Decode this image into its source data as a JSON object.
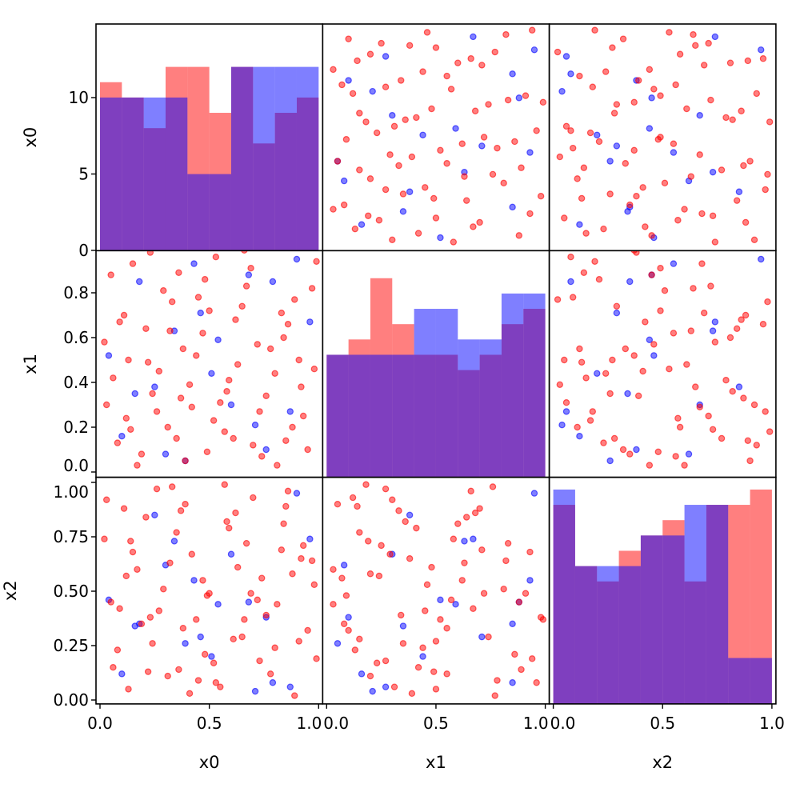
{
  "chart_data": {
    "type": "scatter-matrix",
    "variables": [
      "x0",
      "x1",
      "x2"
    ],
    "colors": {
      "red": "#ff0000",
      "blue": "#0000ff"
    },
    "alpha": 0.5,
    "y_ticks": [
      [
        "0",
        "5",
        "10"
      ],
      [
        "0.0",
        "0.2",
        "0.4",
        "0.6",
        "0.8"
      ],
      [
        "0.00",
        "0.25",
        "0.50",
        "0.75",
        "1.00"
      ]
    ],
    "y_tick_values": [
      [
        0,
        5,
        10
      ],
      [
        0,
        0.2,
        0.4,
        0.6,
        0.8
      ],
      [
        0,
        0.25,
        0.5,
        0.75,
        1.0
      ]
    ],
    "x_ticks": [
      "0.0",
      "0.5",
      "1.0"
    ],
    "x_tick_values": [
      0,
      0.5,
      1.0
    ],
    "histograms": [
      {
        "var": "x0",
        "bins": [
          0,
          0.1,
          0.2,
          0.3,
          0.4,
          0.5,
          0.6,
          0.7,
          0.8,
          0.9,
          1.0
        ],
        "red": [
          11,
          10,
          8,
          12,
          12,
          9,
          12,
          7,
          9,
          10
        ],
        "blue": [
          10,
          10,
          10,
          10,
          5,
          5,
          12,
          12,
          12,
          12
        ],
        "ylim": [
          0,
          14.8
        ]
      },
      {
        "var": "x1",
        "bins": [
          0,
          0.1,
          0.2,
          0.3,
          0.4,
          0.5,
          0.6,
          0.7,
          0.8,
          0.9,
          1.0
        ],
        "red": [
          8,
          9,
          13,
          10,
          8,
          8,
          7,
          8,
          10,
          11
        ],
        "blue": [
          8,
          8,
          8,
          8,
          11,
          11,
          9,
          9,
          12,
          12
        ],
        "ylim": [
          0,
          14.8
        ]
      },
      {
        "var": "x2",
        "bins": [
          0,
          0.1,
          0.2,
          0.3,
          0.4,
          0.5,
          0.6,
          0.7,
          0.8,
          0.9,
          1.0
        ],
        "red": [
          13,
          9,
          8,
          10,
          11,
          12,
          8,
          13,
          13,
          14
        ],
        "blue": [
          14,
          9,
          9,
          9,
          11,
          11,
          13,
          13,
          3,
          3
        ],
        "ylim": [
          0,
          14.8
        ]
      }
    ],
    "points_red": [
      [
        0.05,
        0.88,
        0.45
      ],
      [
        0.12,
        0.24,
        0.57
      ],
      [
        0.33,
        0.76,
        0.98
      ],
      [
        0.44,
        0.52,
        0.37
      ],
      [
        0.61,
        0.15,
        0.28
      ],
      [
        0.78,
        0.55,
        0.12
      ],
      [
        0.92,
        0.38,
        0.65
      ],
      [
        0.21,
        0.64,
        0.84
      ],
      [
        0.55,
        0.31,
        0.06
      ],
      [
        0.67,
        0.83,
        0.72
      ],
      [
        0.08,
        0.13,
        0.23
      ],
      [
        0.27,
        0.45,
        0.41
      ],
      [
        0.39,
        0.05,
        0.9
      ],
      [
        0.5,
        0.72,
        0.49
      ],
      [
        0.73,
        0.27,
        0.18
      ],
      [
        0.86,
        0.66,
        0.96
      ],
      [
        0.95,
        0.1,
        0.32
      ],
      [
        0.15,
        0.93,
        0.68
      ],
      [
        0.31,
        0.2,
        0.11
      ],
      [
        0.47,
        0.62,
        0.55
      ],
      [
        0.59,
        0.41,
        0.79
      ],
      [
        0.81,
        0.03,
        0.44
      ],
      [
        0.02,
        0.58,
        0.74
      ],
      [
        0.24,
        0.35,
        0.26
      ],
      [
        0.36,
        0.89,
        0.14
      ],
      [
        0.63,
        0.48,
        0.61
      ],
      [
        0.7,
        0.12,
        0.93
      ],
      [
        0.89,
        0.77,
        0.02
      ],
      [
        0.98,
        0.46,
        0.53
      ],
      [
        0.11,
        0.7,
        0.88
      ],
      [
        0.19,
        0.08,
        0.35
      ],
      [
        0.42,
        0.29,
        0.67
      ],
      [
        0.53,
        0.96,
        0.08
      ],
      [
        0.76,
        0.34,
        0.39
      ],
      [
        0.84,
        0.6,
        0.81
      ],
      [
        0.06,
        0.42,
        0.15
      ],
      [
        0.29,
        0.81,
        0.51
      ],
      [
        0.57,
        0.18,
        0.99
      ],
      [
        0.65,
        0.74,
        0.29
      ],
      [
        0.93,
        0.25,
        0.71
      ],
      [
        0.13,
        0.5,
        0.05
      ],
      [
        0.35,
        0.15,
        0.77
      ],
      [
        0.48,
        0.86,
        0.21
      ],
      [
        0.72,
        0.57,
        0.46
      ],
      [
        0.88,
        0.2,
        0.58
      ],
      [
        0.03,
        0.3,
        0.92
      ],
      [
        0.23,
        0.98,
        0.38
      ],
      [
        0.41,
        0.39,
        0.03
      ],
      [
        0.62,
        0.68,
        0.86
      ],
      [
        0.8,
        0.44,
        0.24
      ],
      [
        0.97,
        0.82,
        0.64
      ],
      [
        0.17,
        0.03,
        0.6
      ],
      [
        0.38,
        0.55,
        0.33
      ],
      [
        0.52,
        0.23,
        0.17
      ],
      [
        0.69,
        0.91,
        0.49
      ],
      [
        0.85,
        0.14,
        0.89
      ],
      [
        0.09,
        0.67,
        0.42
      ],
      [
        0.26,
        0.27,
        0.97
      ],
      [
        0.45,
        0.78,
        0.09
      ],
      [
        0.74,
        0.07,
        0.56
      ],
      [
        0.91,
        0.5,
        0.27
      ],
      [
        0.32,
        0.63,
        0.63
      ],
      [
        0.58,
        0.36,
        0.82
      ],
      [
        0.99,
        0.94,
        0.19
      ],
      [
        0.14,
        0.19,
        0.73
      ],
      [
        0.66,
        0.99,
        0.37
      ],
      [
        0.49,
        0.09,
        0.48
      ],
      [
        0.83,
        0.71,
        0.69
      ],
      [
        0.22,
        0.49,
        0.13
      ],
      [
        0.37,
        0.33,
        0.87
      ]
    ],
    "points_blue": [
      [
        0.04,
        0.52,
        0.46
      ],
      [
        0.18,
        0.85,
        0.35
      ],
      [
        0.34,
        0.63,
        0.73
      ],
      [
        0.51,
        0.44,
        0.2
      ],
      [
        0.68,
        0.88,
        0.45
      ],
      [
        0.87,
        0.27,
        0.06
      ],
      [
        0.1,
        0.16,
        0.12
      ],
      [
        0.25,
        0.38,
        0.85
      ],
      [
        0.43,
        0.93,
        0.55
      ],
      [
        0.6,
        0.3,
        0.67
      ],
      [
        0.79,
        0.85,
        0.08
      ],
      [
        0.96,
        0.67,
        0.74
      ],
      [
        0.3,
        0.08,
        0.62
      ],
      [
        0.46,
        0.71,
        0.29
      ],
      [
        0.71,
        0.21,
        0.04
      ],
      [
        0.16,
        0.35,
        0.34
      ],
      [
        0.54,
        0.59,
        0.44
      ],
      [
        0.76,
        0.1,
        0.38
      ],
      [
        0.9,
        0.95,
        0.95
      ],
      [
        0.39,
        0.05,
        0.26
      ]
    ]
  }
}
